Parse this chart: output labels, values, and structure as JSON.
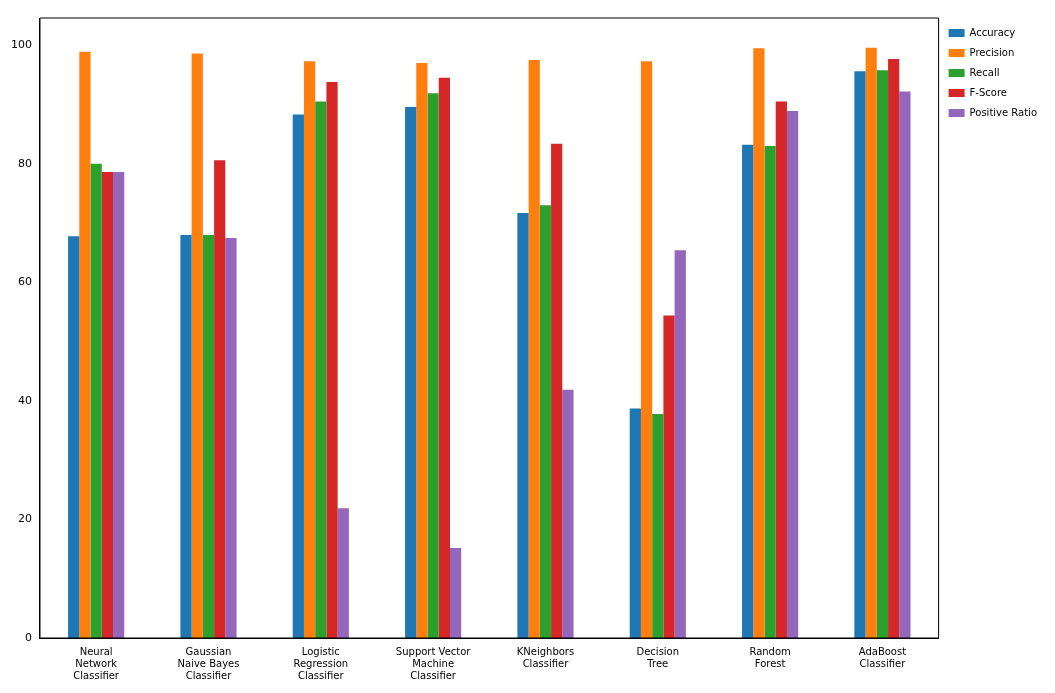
{
  "chart_data": {
    "type": "bar",
    "categories": [
      "Neural\nNetwork\nClassifier",
      "Gaussian\nNaive Bayes\nClassifier",
      "Logistic\nRegression\nClassifier",
      "Support Vector\nMachine\nClassifier",
      "KNeighbors\nClassifier",
      "Decision\nTree",
      "Random\nForest",
      "AdaBoost\nClassifier"
    ],
    "series": [
      {
        "name": "Accuracy",
        "color": "#1f77b4",
        "values": [
          67.8,
          68.0,
          88.3,
          89.6,
          71.7,
          38.7,
          83.2,
          95.6
        ]
      },
      {
        "name": "Precision",
        "color": "#ff7f0e",
        "values": [
          98.9,
          98.6,
          97.3,
          97.0,
          97.5,
          97.3,
          99.5,
          99.6
        ]
      },
      {
        "name": "Recall",
        "color": "#2ca02c",
        "values": [
          80.0,
          68.0,
          90.5,
          91.9,
          73.0,
          37.8,
          83.0,
          95.8
        ]
      },
      {
        "name": "F-Score",
        "color": "#d62728",
        "values": [
          78.6,
          80.6,
          93.8,
          94.5,
          83.4,
          54.4,
          90.5,
          97.7
        ]
      },
      {
        "name": "Positive Ratio",
        "color": "#9467bd",
        "values": [
          78.6,
          67.5,
          21.9,
          15.2,
          41.9,
          65.4,
          88.9,
          92.2
        ]
      }
    ],
    "ylim": [
      0,
      104.6
    ],
    "yticks": [
      0,
      20,
      40,
      60,
      80,
      100
    ],
    "grid": false,
    "legend": "top right"
  }
}
